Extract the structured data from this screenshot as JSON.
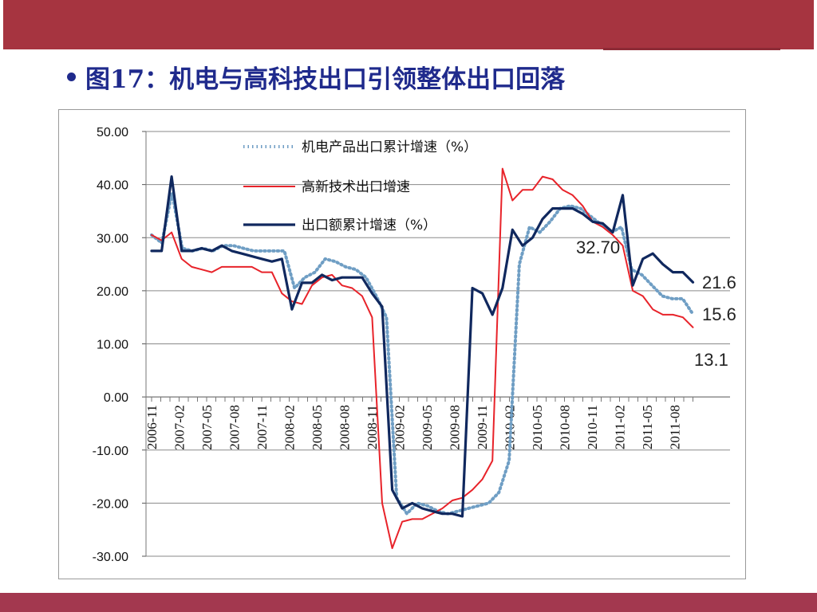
{
  "slide": {
    "title": "图17：机电与高科技出口引领整体出口回落"
  },
  "chart_data": {
    "type": "line",
    "ylim": [
      -30,
      50
    ],
    "yticks": [
      "50.00",
      "40.00",
      "30.00",
      "20.00",
      "10.00",
      "0.00",
      "-10.00",
      "-20.00",
      "-30.00"
    ],
    "ytick_values": [
      50,
      40,
      30,
      20,
      10,
      0,
      -10,
      -20,
      -30
    ],
    "x_start": "2006-11",
    "x_end": "2011-10",
    "x_tick_labels": [
      "2006-11",
      "2007-02",
      "2007-05",
      "2007-08",
      "2007-11",
      "2008-02",
      "2008-05",
      "2008-08",
      "2008-11",
      "2009-02",
      "2009-05",
      "2009-08",
      "2009-11",
      "2010-02",
      "2010-05",
      "2010-08",
      "2010-11",
      "2011-02",
      "2011-05",
      "2011-08"
    ],
    "grid": "horizontal",
    "legend_position": "top-left",
    "series": [
      {
        "name": "机电产品出口累计增速（%）",
        "color": "#6f9ec4",
        "style": "dotted",
        "values": [
          30.5,
          29,
          38.5,
          28,
          27.5,
          28,
          27.5,
          28.5,
          28.5,
          28,
          27.5,
          27.5,
          27.5,
          27.5,
          20.5,
          22.5,
          23.5,
          26,
          25.5,
          24.5,
          24,
          22.5,
          19,
          15,
          -19,
          -22,
          -20,
          -20.5,
          -21.5,
          -22,
          -21.5,
          -21,
          -20.5,
          -20,
          -18,
          -12,
          25,
          32,
          31,
          33,
          35.5,
          36,
          35.5,
          34,
          32.5,
          31,
          32,
          24,
          23,
          21,
          19,
          18.5,
          18.5,
          15.6
        ]
      },
      {
        "name": "高新技术出口增速",
        "color": "#e8232a",
        "style": "solid",
        "values": [
          30.5,
          29.5,
          31,
          26,
          24.5,
          24,
          23.5,
          24.5,
          24.5,
          24.5,
          24.5,
          23.5,
          23.5,
          19.5,
          18,
          17.5,
          21,
          22.5,
          23,
          21,
          20.5,
          19,
          15,
          -20,
          -28.5,
          -23.5,
          -23,
          -23,
          -22,
          -21,
          -19.5,
          -19,
          -17.5,
          -15.5,
          -12,
          43,
          37,
          39,
          39,
          41.5,
          41,
          39,
          38,
          36,
          33,
          32,
          30.5,
          28.5,
          20,
          19,
          16.5,
          15.5,
          15.5,
          15,
          13.1
        ]
      },
      {
        "name": "出口额累计增速（%）",
        "color": "#10285e",
        "style": "solid",
        "values": [
          27.5,
          27.5,
          41.5,
          27.5,
          27.5,
          28,
          27.5,
          28.5,
          27.5,
          27,
          26.5,
          26,
          25.5,
          26,
          16.5,
          21.5,
          21.5,
          23,
          22,
          22.5,
          22.5,
          22.5,
          19.5,
          17,
          -17.5,
          -21,
          -20,
          -21,
          -21.5,
          -22,
          -22,
          -22.5,
          20.5,
          19.5,
          15.5,
          20.5,
          31.5,
          28.5,
          30,
          33.5,
          35.5,
          35.5,
          35.5,
          34.5,
          33,
          32.7,
          31,
          38,
          21,
          26,
          27,
          25,
          23.5,
          23.5,
          21.6
        ]
      }
    ],
    "annotations": [
      "32.70",
      "21.6",
      "15.6",
      "13.1"
    ]
  }
}
